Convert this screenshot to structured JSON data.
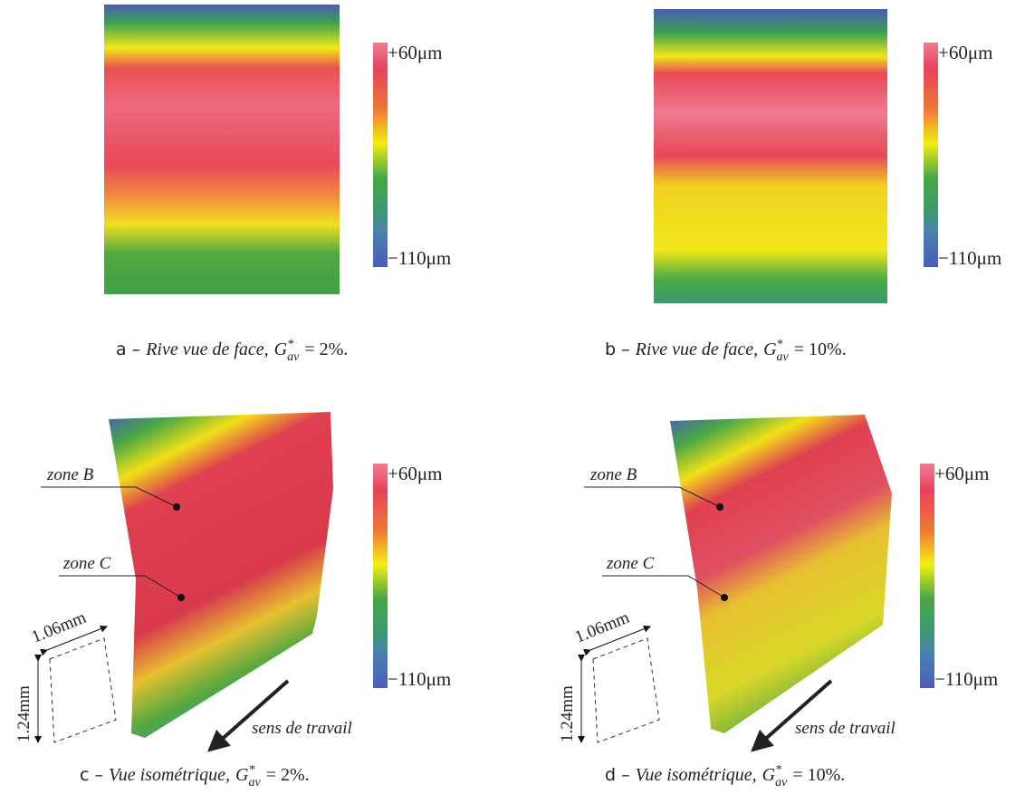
{
  "panels": [
    {
      "letter": "a –",
      "caption": {
        "text": "Rive vue de face,",
        "variable": "G",
        "superscript": "*",
        "subscript": "av",
        "equals": "= 2%."
      },
      "colorbar": {
        "max_label": "+60μm",
        "min_label": "−110μm"
      }
    },
    {
      "letter": "b –",
      "caption": {
        "text": "Rive vue de face,",
        "variable": "G",
        "superscript": "*",
        "subscript": "av",
        "equals": "= 10%."
      },
      "colorbar": {
        "max_label": "+60μm",
        "min_label": "−110μm"
      }
    },
    {
      "letter": "c –",
      "caption": {
        "text": "Vue isométrique,",
        "variable": "G",
        "superscript": "*",
        "subscript": "av",
        "equals": "= 2%."
      },
      "colorbar": {
        "max_label": "+60μm",
        "min_label": "−110μm"
      },
      "annotations": {
        "zone_b": "zone B",
        "zone_c": "zone C",
        "width": "1.06mm",
        "height": "1.24mm",
        "direction": "sens de travail"
      }
    },
    {
      "letter": "d –",
      "caption": {
        "text": "Vue isométrique,",
        "variable": "G",
        "superscript": "*",
        "subscript": "av",
        "equals": "= 10%."
      },
      "colorbar": {
        "max_label": "+60μm",
        "min_label": "−110μm"
      },
      "annotations": {
        "zone_b": "zone B",
        "zone_c": "zone C",
        "width": "1.06mm",
        "height": "1.24mm",
        "direction": "sens de travail"
      }
    }
  ]
}
